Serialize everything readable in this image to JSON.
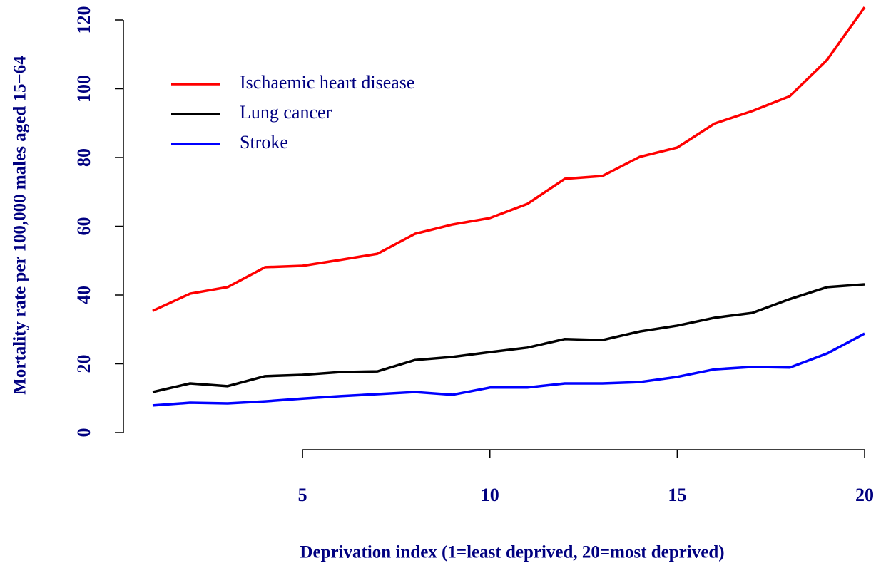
{
  "chart_data": {
    "type": "line",
    "xlabel": "Deprivation index (1=least deprived, 20=most deprived)",
    "ylabel": "Mortality rate per 100,000 males aged 15−64",
    "x": [
      1,
      2,
      3,
      4,
      5,
      6,
      7,
      8,
      9,
      10,
      11,
      12,
      13,
      14,
      15,
      16,
      17,
      18,
      19,
      20
    ],
    "series": [
      {
        "name": "Ischaemic heart disease",
        "color": "#ff0000",
        "values": [
          35.4,
          40.4,
          42.3,
          48.1,
          48.5,
          50.2,
          52.0,
          57.8,
          60.5,
          62.4,
          66.5,
          73.8,
          74.6,
          80.2,
          82.9,
          89.9,
          93.5,
          97.8,
          108.4,
          123.7
        ]
      },
      {
        "name": "Lung cancer",
        "color": "#000000",
        "values": [
          11.8,
          14.3,
          13.5,
          16.4,
          16.8,
          17.6,
          17.8,
          21.1,
          22.0,
          23.4,
          24.7,
          27.2,
          26.9,
          29.4,
          31.1,
          33.4,
          34.8,
          38.8,
          42.3,
          43.1
        ]
      },
      {
        "name": "Stroke",
        "color": "#0000ff",
        "values": [
          7.9,
          8.7,
          8.5,
          9.1,
          9.9,
          10.6,
          11.2,
          11.8,
          11.0,
          13.1,
          13.1,
          14.3,
          14.3,
          14.7,
          16.2,
          18.4,
          19.1,
          18.9,
          23.0,
          28.8
        ]
      }
    ],
    "xlim": [
      1,
      20
    ],
    "xticks": [
      5,
      10,
      15,
      20
    ],
    "ylim": [
      0,
      120
    ],
    "yticks": [
      0,
      20,
      40,
      60,
      80,
      100,
      120
    ],
    "legend": "top-left",
    "text_color": "#000080"
  }
}
